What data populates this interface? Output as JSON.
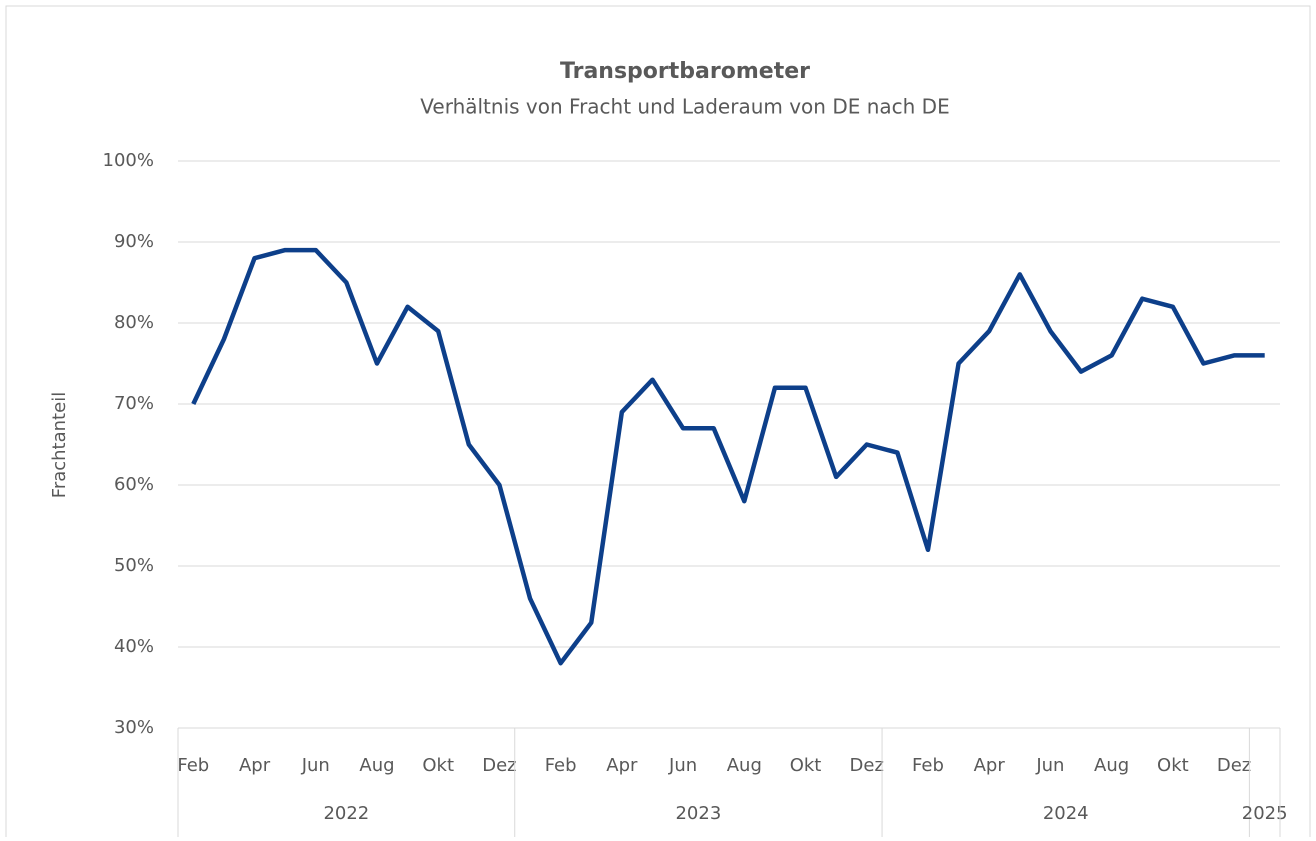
{
  "chart_data": {
    "type": "line",
    "title": "Transportbarometer",
    "subtitle": "Verhältnis von Fracht und Laderaum von DE nach DE",
    "y_label": "Frachtanteil",
    "categories": [
      "Feb",
      null,
      "Apr",
      null,
      "Jun",
      null,
      "Aug",
      null,
      "Okt",
      null,
      "Dez",
      null,
      "Feb",
      null,
      "Apr",
      null,
      "Jun",
      null,
      "Aug",
      null,
      "Okt",
      null,
      "Dez",
      null,
      "Feb",
      null,
      "Apr",
      null,
      "Jun",
      null,
      "Aug",
      null,
      "Okt",
      null,
      "Dez",
      null
    ],
    "year_groups": [
      {
        "label": "2022",
        "count": 11
      },
      {
        "label": "2023",
        "count": 12
      },
      {
        "label": "2024",
        "count": 12
      },
      {
        "label": "2025",
        "count": 1
      }
    ],
    "series": [
      {
        "name": "Frachtanteil",
        "color": "#0d3f8a",
        "values": [
          70,
          78,
          88,
          89,
          89,
          85,
          75,
          82,
          79,
          65,
          60,
          46,
          38,
          43,
          69,
          73,
          67,
          67,
          58,
          72,
          72,
          61,
          65,
          64,
          52,
          75,
          79,
          86,
          79,
          74,
          76,
          83,
          82,
          75,
          76,
          76
        ]
      }
    ],
    "ylim": [
      30,
      100
    ],
    "yticks": [
      {
        "value": 30,
        "label": "30%"
      },
      {
        "value": 40,
        "label": "40%"
      },
      {
        "value": 50,
        "label": "50%"
      },
      {
        "value": 60,
        "label": "60%"
      },
      {
        "value": 70,
        "label": "70%"
      },
      {
        "value": 80,
        "label": "80%"
      },
      {
        "value": 90,
        "label": "90%"
      },
      {
        "value": 100,
        "label": "100%"
      }
    ],
    "grid": true
  }
}
